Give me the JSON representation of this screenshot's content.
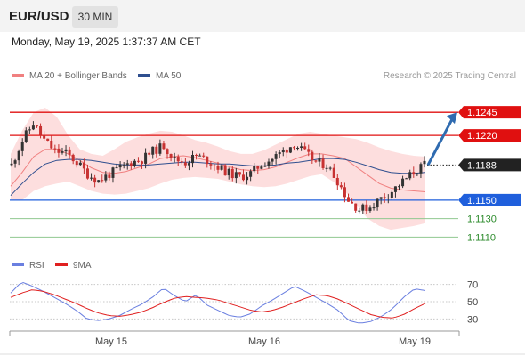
{
  "header": {
    "symbol": "EUR/USD",
    "timeframe": "30 MIN"
  },
  "datetime": "Monday, May 19, 2025 1:37:37 AM CET",
  "legend": {
    "ma20": "MA 20 + Bollinger Bands",
    "ma50": "MA 50",
    "ma20_color": "#f08080",
    "ma50_color": "#2f4f8f"
  },
  "credit": "Research © 2025 Trading Central",
  "rsi_legend": {
    "rsi": "RSI",
    "ma9": "9MA",
    "rsi_color": "#6a7fe0",
    "ma9_color": "#e02020"
  },
  "chart_data": [
    {
      "type": "line",
      "title": "",
      "x_ticks": [
        "May 15",
        "May 16",
        "May 19"
      ],
      "ylim": [
        1.1095,
        1.1275
      ],
      "levels": [
        {
          "label": "1.1245",
          "value": 1.1245,
          "color": "#e01010",
          "tag": true
        },
        {
          "label": "1.1220",
          "value": 1.122,
          "color": "#e01010",
          "tag": true
        },
        {
          "label": "1.1188",
          "value": 1.1188,
          "color": "#222222",
          "tag": true,
          "dotted": true
        },
        {
          "label": "1.1150",
          "value": 1.115,
          "color": "#1f5fdc",
          "tag": true
        },
        {
          "label": "1.1130",
          "value": 1.113,
          "color": "#90c890",
          "text_color": "#2a8a2a",
          "tag": false
        },
        {
          "label": "1.1110",
          "value": 1.111,
          "color": "#90c890",
          "text_color": "#2a8a2a",
          "tag": false
        }
      ],
      "price_path": [
        1.1188,
        1.1215,
        1.1233,
        1.1215,
        1.1203,
        1.1201,
        1.1191,
        1.1178,
        1.1171,
        1.1178,
        1.1185,
        1.1191,
        1.1194,
        1.1203,
        1.1209,
        1.1194,
        1.1191,
        1.1198,
        1.1193,
        1.1186,
        1.1179,
        1.1175,
        1.1179,
        1.1189,
        1.1195,
        1.1203,
        1.1211,
        1.1201,
        1.1191,
        1.1188,
        1.1171,
        1.115,
        1.114,
        1.1143,
        1.1152,
        1.116,
        1.117,
        1.118,
        1.1188
      ],
      "ma20_path": [
        1.1165,
        1.118,
        1.1197,
        1.1205,
        1.1205,
        1.12,
        1.1193,
        1.1185,
        1.118,
        1.1179,
        1.1181,
        1.1185,
        1.1189,
        1.1195,
        1.1197,
        1.1198,
        1.1196,
        1.1193,
        1.119,
        1.1186,
        1.1183,
        1.1182,
        1.1183,
        1.1186,
        1.1191,
        1.1196,
        1.12,
        1.12,
        1.1198,
        1.1195,
        1.1186,
        1.1177,
        1.1168,
        1.1163,
        1.1161,
        1.116,
        1.1159
      ],
      "ma50_path": [
        1.1155,
        1.1168,
        1.118,
        1.1189,
        1.1193,
        1.1194,
        1.1194,
        1.1193,
        1.1191,
        1.1189,
        1.1188,
        1.1188,
        1.1188,
        1.1189,
        1.119,
        1.1191,
        1.1191,
        1.119,
        1.1189,
        1.1189,
        1.1188,
        1.1187,
        1.1187,
        1.1188,
        1.119,
        1.1191,
        1.1193,
        1.1195,
        1.1195,
        1.1194,
        1.1191,
        1.1187,
        1.1183,
        1.118,
        1.1179,
        1.1179,
        1.118
      ],
      "bb_upper": [
        1.12,
        1.1225,
        1.1245,
        1.125,
        1.124,
        1.122,
        1.1205,
        1.12,
        1.1198,
        1.1205,
        1.1213,
        1.1218,
        1.1222,
        1.1225,
        1.1224,
        1.122,
        1.1215,
        1.1212,
        1.1208,
        1.1203,
        1.12,
        1.12,
        1.1204,
        1.121,
        1.1216,
        1.1222,
        1.1224,
        1.1222,
        1.122,
        1.1218,
        1.1216,
        1.1212,
        1.1207,
        1.1203,
        1.12,
        1.1198,
        1.1197
      ],
      "bb_lower": [
        1.115,
        1.115,
        1.116,
        1.1165,
        1.1168,
        1.117,
        1.1165,
        1.116,
        1.1157,
        1.1156,
        1.1157,
        1.116,
        1.1163,
        1.1168,
        1.1172,
        1.1174,
        1.1175,
        1.1174,
        1.1173,
        1.117,
        1.1167,
        1.1165,
        1.1164,
        1.1165,
        1.1168,
        1.1172,
        1.1176,
        1.1178,
        1.117,
        1.116,
        1.1145,
        1.113,
        1.1122,
        1.1118,
        1.112,
        1.1122,
        1.1125
      ],
      "forecast": {
        "from": 1.1188,
        "to": 1.1245
      }
    },
    {
      "type": "line",
      "title": "",
      "ylim": [
        20,
        80
      ],
      "y_ticks": [
        "70",
        "50",
        "30"
      ],
      "rsi": [
        60,
        73,
        68,
        62,
        55,
        48,
        40,
        30,
        28,
        30,
        34,
        41,
        47,
        55,
        66,
        57,
        50,
        58,
        46,
        40,
        34,
        32,
        36,
        45,
        52,
        60,
        68,
        62,
        55,
        48,
        40,
        28,
        25,
        27,
        33,
        42,
        55,
        65,
        63
      ],
      "ma9": [
        55,
        60,
        64,
        62,
        58,
        53,
        48,
        42,
        37,
        34,
        33,
        35,
        38,
        43,
        49,
        54,
        56,
        55,
        54,
        52,
        48,
        44,
        40,
        38,
        40,
        44,
        49,
        54,
        58,
        57,
        53,
        47,
        41,
        35,
        32,
        31,
        35,
        42,
        48
      ]
    }
  ]
}
